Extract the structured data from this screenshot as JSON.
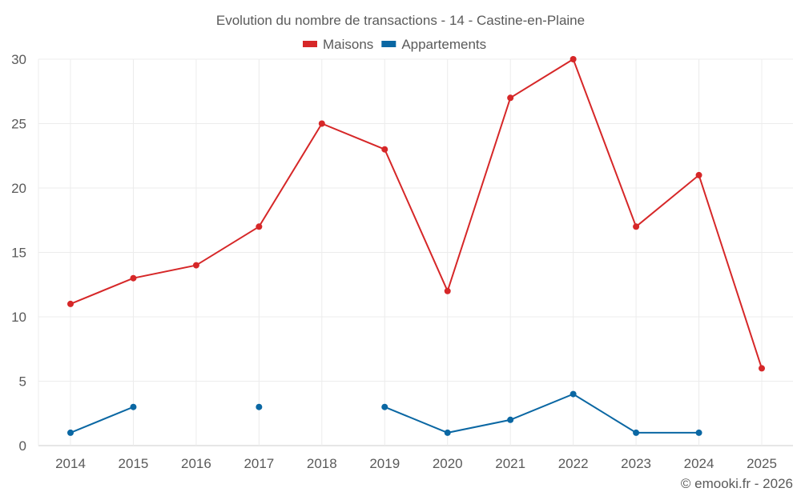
{
  "chart_data": {
    "type": "line",
    "title": "Evolution du nombre de transactions - 14 - Castine-en-Plaine",
    "xlabel": "",
    "ylabel": "",
    "x": [
      "2014",
      "2015",
      "2016",
      "2017",
      "2018",
      "2019",
      "2020",
      "2021",
      "2022",
      "2023",
      "2024",
      "2025"
    ],
    "ylim": [
      0,
      30
    ],
    "yticks": [
      0,
      5,
      10,
      15,
      20,
      25,
      30
    ],
    "grid": true,
    "legend_position": "top-center",
    "series": [
      {
        "name": "Maisons",
        "color": "#d62728",
        "values": [
          11,
          13,
          14,
          17,
          25,
          23,
          12,
          27,
          30,
          17,
          21,
          6
        ]
      },
      {
        "name": "Appartements",
        "color": "#0a67a3",
        "values": [
          1,
          3,
          null,
          3,
          null,
          3,
          1,
          2,
          4,
          1,
          1,
          null
        ]
      }
    ]
  },
  "footer": {
    "copyright": "© emooki.fr - 2026"
  }
}
